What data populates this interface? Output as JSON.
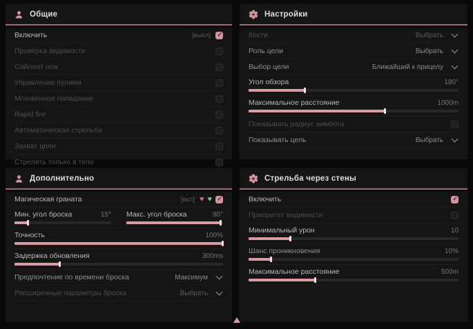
{
  "colors": {
    "accent_pink": "#d795a0",
    "slider_fill": "#d99ca3",
    "checkbox_checked": "#d494a0",
    "header_underline": "#a06c77",
    "heart_pink": "#d4707e",
    "heart_green": "#79c47f"
  },
  "panels": {
    "general": {
      "title": "Общие",
      "rows": [
        {
          "label": "Включить",
          "hint": "[выкл]",
          "checked": true
        },
        {
          "label": "Проверка видимости",
          "checked": false
        },
        {
          "label": "Сайлент нож",
          "checked": false
        },
        {
          "label": "Управление пулями",
          "checked": false
        },
        {
          "label": "Мгновенное попадание",
          "checked": false
        },
        {
          "label": "Rapid fire",
          "checked": false
        },
        {
          "label": "Автоматическая стрельба",
          "checked": false
        },
        {
          "label": "Захват цели",
          "checked": false
        },
        {
          "label": "Стрелять только в тело",
          "checked": false
        }
      ]
    },
    "settings": {
      "title": "Настройки",
      "bones": {
        "label": "Кости",
        "value": "Выбрать"
      },
      "role": {
        "label": "Роль цели",
        "value": "Выбрать"
      },
      "select": {
        "label": "Выбор цели",
        "value": "Ближайший к прицелу"
      },
      "fov": {
        "label": "Угол обзора",
        "value": "180°",
        "fill": 27
      },
      "dist": {
        "label": "Максимальное расстояние",
        "value": "1000m",
        "fill": 65
      },
      "radius": {
        "label": "Показывать радиус аимбота",
        "checked": false
      },
      "show_target": {
        "label": "Показывать цель",
        "value": "Выбрать"
      }
    },
    "additional": {
      "title": "Дополнительно",
      "grenade": {
        "label": "Магическая граната",
        "hint": "[вкл]",
        "checked": true
      },
      "min_throw": {
        "label": "Мин. угол броска",
        "value": "15°",
        "fill": 14
      },
      "max_throw": {
        "label": "Макс. угол броска",
        "value": "90°",
        "fill": 98
      },
      "accuracy": {
        "label": "Точность",
        "value": "100%",
        "fill": 100
      },
      "delay": {
        "label": "Задержка обновления",
        "value": "300ms",
        "fill": 22
      },
      "time_pref": {
        "label": "Предпочтение по времени броска",
        "value": "Максимум"
      },
      "advanced": {
        "label": "Расширенные параметры броска",
        "value": "Выбрать"
      }
    },
    "walls": {
      "title": "Стрельба через стены",
      "enable": {
        "label": "Включить",
        "checked": true
      },
      "vis_priority": {
        "label": "Приоритет видимости",
        "checked": false
      },
      "min_damage": {
        "label": "Минимальный урон",
        "value": "10",
        "fill": 20
      },
      "penetration": {
        "label": "Шанс проникновения",
        "value": "10%",
        "fill": 11
      },
      "distance": {
        "label": "Максимальное расстояние",
        "value": "500m",
        "fill": 32
      }
    }
  }
}
